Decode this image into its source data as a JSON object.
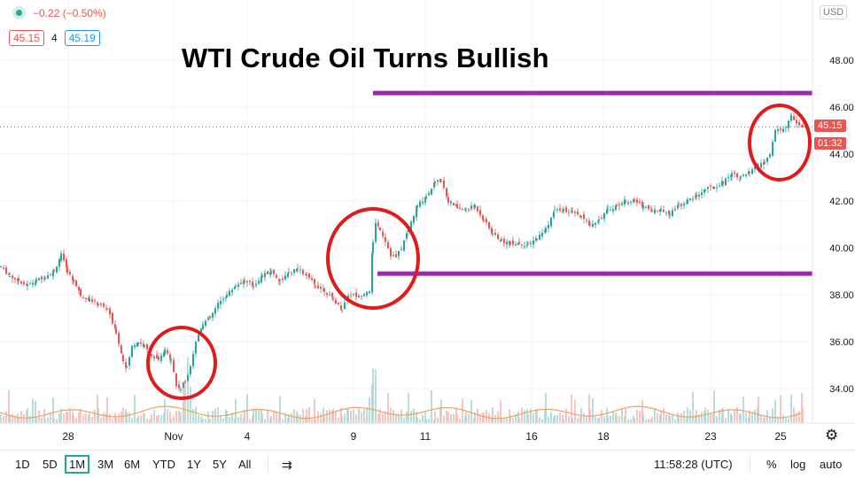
{
  "header": {
    "change_text": "−0.22 (−0.50%)",
    "bid": "45.15",
    "spread": "4",
    "ask": "45.19"
  },
  "title": "WTI Crude Oil Turns Bullish",
  "currency": "USD",
  "price_tag": {
    "price": "45.15",
    "countdown": "01:32"
  },
  "toolbar": {
    "ranges": [
      "1D",
      "5D",
      "1M",
      "3M",
      "6M",
      "YTD",
      "1Y",
      "5Y",
      "All"
    ],
    "active_range": "1M",
    "clock": "11:58:28 (UTC)",
    "percent": "%",
    "log": "log",
    "auto": "auto"
  },
  "colors": {
    "up": "#26a69a",
    "down": "#ef5350",
    "annotation": "#9c27b0",
    "circle": "#e01b1b",
    "ma": "#f0a060"
  },
  "chart_data": {
    "type": "line",
    "title": "WTI Crude Oil Turns Bullish",
    "xlabel": "",
    "ylabel": "",
    "x_tick_labels": [
      "28",
      "Nov",
      "4",
      "9",
      "11",
      "16",
      "18",
      "23",
      "25"
    ],
    "y_tick_labels": [
      "34.00",
      "36.00",
      "38.00",
      "40.00",
      "42.00",
      "44.00",
      "46.00",
      "48.00"
    ],
    "ylim": [
      32.5,
      50.5
    ],
    "grid": true,
    "series": [
      {
        "x": [
          0,
          10,
          20,
          30,
          40,
          50,
          60,
          68,
          75,
          82,
          90,
          100,
          110,
          120,
          130,
          138,
          142,
          148,
          155,
          162,
          170,
          178,
          185,
          192,
          198,
          203,
          208,
          214,
          220,
          228,
          236,
          245,
          255,
          265,
          275,
          285,
          295,
          305,
          315,
          325,
          335,
          345,
          355,
          365,
          375,
          385,
          392,
          398,
          404,
          410,
          416,
          420,
          423,
          428,
          434,
          440,
          446,
          452,
          460,
          470,
          480,
          490,
          497,
          505,
          515,
          525,
          535,
          545,
          555,
          565,
          575,
          585,
          595,
          605,
          615,
          625,
          635,
          645,
          655,
          665,
          675,
          685,
          695,
          705,
          715,
          725,
          735,
          745,
          755,
          765,
          775,
          785,
          795,
          805,
          815,
          825,
          835,
          845,
          855,
          862,
          868,
          874,
          880,
          886,
          892,
          898,
          905
        ],
        "values": [
          39.2,
          38.8,
          38.6,
          38.4,
          38.6,
          38.8,
          39.0,
          39.7,
          39.0,
          38.6,
          38.0,
          37.8,
          37.6,
          37.4,
          36.4,
          35.2,
          34.9,
          35.8,
          36.0,
          35.8,
          35.4,
          35.2,
          35.6,
          35.3,
          34.1,
          34.0,
          34.3,
          35.0,
          36.0,
          36.8,
          37.0,
          37.6,
          38.0,
          38.4,
          38.6,
          38.4,
          38.8,
          39.0,
          38.6,
          38.9,
          39.1,
          38.8,
          38.4,
          38.2,
          37.8,
          37.4,
          38.0,
          38.0,
          37.9,
          38.1,
          38.2,
          40.2,
          41.1,
          40.8,
          40.3,
          39.7,
          39.6,
          40.0,
          40.8,
          41.8,
          42.2,
          42.8,
          42.9,
          42.0,
          41.7,
          41.6,
          41.8,
          41.2,
          40.6,
          40.3,
          40.2,
          40.2,
          40.1,
          40.4,
          40.8,
          41.6,
          41.6,
          41.5,
          41.3,
          41.0,
          41.2,
          41.6,
          41.8,
          42.0,
          42.0,
          41.8,
          41.6,
          41.6,
          41.5,
          41.8,
          42.0,
          42.2,
          42.5,
          42.6,
          42.8,
          43.2,
          43.0,
          43.2,
          43.5,
          43.6,
          44.0,
          45.0,
          45.0,
          45.2,
          45.6,
          45.3,
          45.15
        ]
      }
    ],
    "annotations": [
      {
        "type": "horizontal-line",
        "price": 46.6,
        "label": ""
      },
      {
        "type": "horizontal-line",
        "price": 38.9,
        "label": ""
      },
      {
        "type": "last-price-line",
        "price": 45.15
      }
    ]
  }
}
